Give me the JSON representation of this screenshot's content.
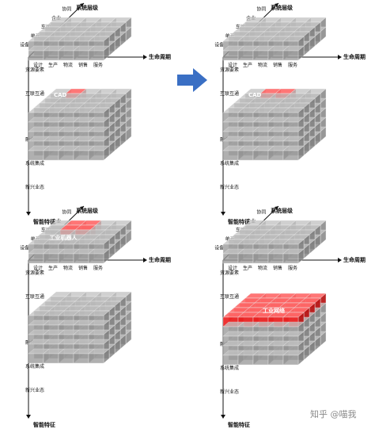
{
  "labels": {
    "system_level": "系统层级",
    "lifecycle": "生命周期",
    "smart_feature": "智能特征",
    "level_items": [
      "设备",
      "单元",
      "车间",
      "企业",
      "协同"
    ],
    "stage_items": [
      "设计",
      "生产",
      "物流",
      "销售",
      "服务"
    ],
    "feature_items": [
      "资源要素",
      "互联互通",
      "融合共享",
      "系统集成",
      "新兴业态"
    ]
  },
  "panels": [
    {
      "id": "top-left",
      "highlight_text": "CAD"
    },
    {
      "id": "top-right",
      "highlight_text": "CAD"
    },
    {
      "id": "bottom-left",
      "highlight_text": "工业机器人"
    },
    {
      "id": "bottom-right",
      "highlight_text": "工业网络"
    }
  ],
  "watermark": "知乎 @喵我",
  "colors": {
    "cube_gray": "#8c8c8c",
    "highlight_red": "#e02020",
    "arrow_blue": "#3a6fc4"
  }
}
